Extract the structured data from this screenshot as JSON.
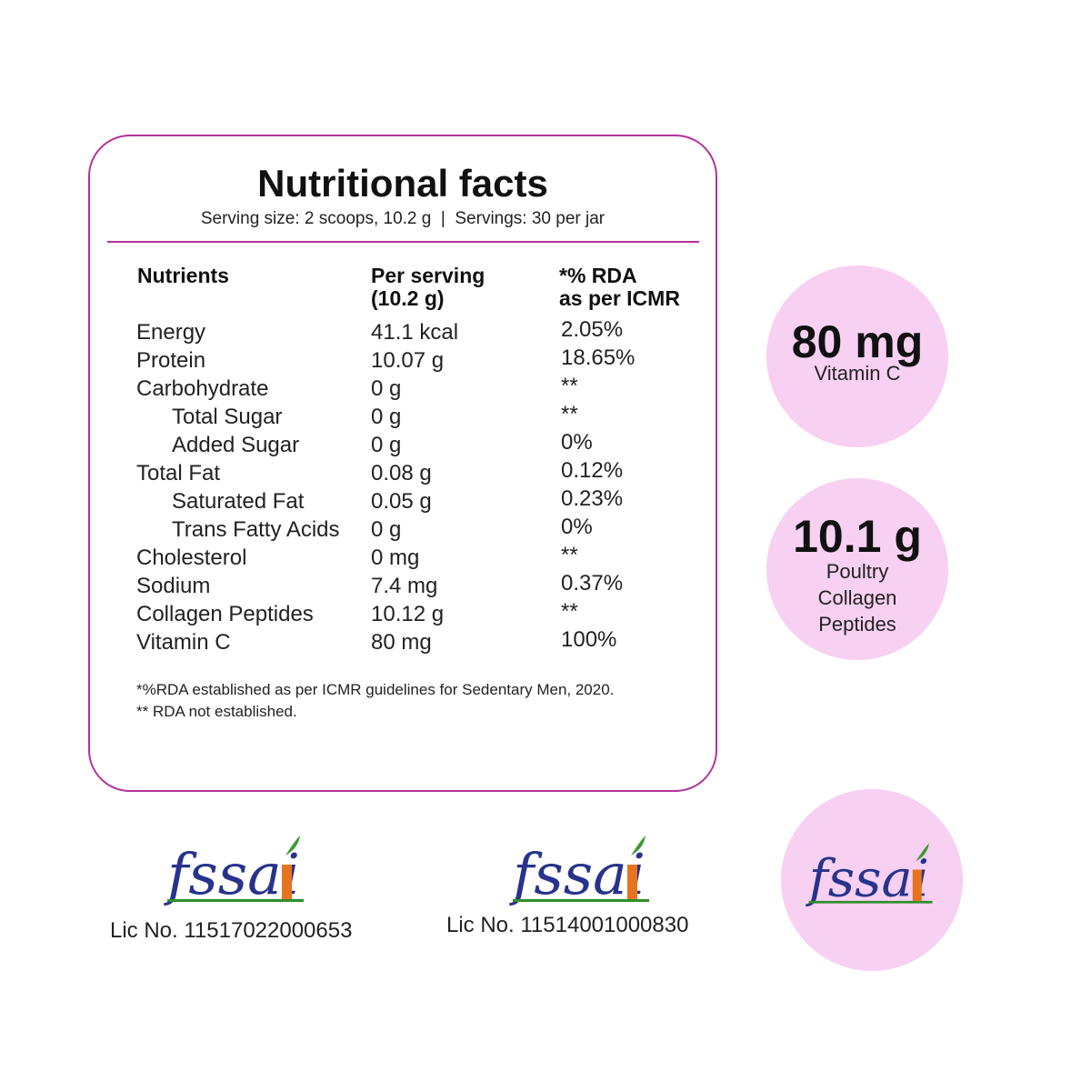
{
  "panel": {
    "title": "Nutritional facts",
    "subtitle": "Serving size: 2 scoops, 10.2 g  |  Servings: 30 per jar",
    "border_color": "#b5309a",
    "headers": {
      "nutrients": "Nutrients",
      "per_serving_line1": "Per serving",
      "per_serving_line2": "(10.2 g)",
      "rda_line1": "*% RDA",
      "rda_line2": "as per ICMR"
    },
    "rows": [
      {
        "name": "Energy",
        "value": "41.1 kcal",
        "rda": "2.05%",
        "indent": false
      },
      {
        "name": "Protein",
        "value": "10.07 g",
        "rda": "18.65%",
        "indent": false
      },
      {
        "name": "Carbohydrate",
        "value": "0 g",
        "rda": "**",
        "indent": false
      },
      {
        "name": "Total Sugar",
        "value": "0 g",
        "rda": "**",
        "indent": true
      },
      {
        "name": "Added Sugar",
        "value": "0 g",
        "rda": "0%",
        "indent": true
      },
      {
        "name": "Total Fat",
        "value": "0.08 g",
        "rda": "0.12%",
        "indent": false
      },
      {
        "name": "Saturated Fat",
        "value": "0.05 g",
        "rda": "0.23%",
        "indent": true
      },
      {
        "name": "Trans Fatty Acids",
        "value": "0 g",
        "rda": "0%",
        "indent": true
      },
      {
        "name": "Cholesterol",
        "value": "0 mg",
        "rda": "**",
        "indent": false
      },
      {
        "name": "Sodium",
        "value": "7.4 mg",
        "rda": "0.37%",
        "indent": false
      },
      {
        "name": "Collagen Peptides",
        "value": "10.12 g",
        "rda": "**",
        "indent": false
      },
      {
        "name": "Vitamin C",
        "value": "80 mg",
        "rda": "100%",
        "indent": false
      }
    ],
    "footnotes": [
      "*%RDA established as per ICMR guidelines for Sedentary Men, 2020.",
      "** RDA not established."
    ]
  },
  "badges": [
    {
      "big": "80 mg",
      "lines": [
        "Vitamin C"
      ]
    },
    {
      "big": "10.1 g",
      "lines": [
        "Poultry",
        "Collagen",
        "Peptides"
      ]
    }
  ],
  "badge_color": "#f7d0f2",
  "certifications": [
    {
      "logo_text": "fssai",
      "license": "Lic No. 11517022000653"
    },
    {
      "logo_text": "fssai",
      "license": "Lic No. 11514001000830"
    },
    {
      "logo_text": "fssai",
      "license": ""
    }
  ],
  "logo_colors": {
    "text": "#27338c",
    "accent": "#e8731f",
    "underline_green": "#2f8f2a",
    "leaf": "#3b9a2f"
  }
}
